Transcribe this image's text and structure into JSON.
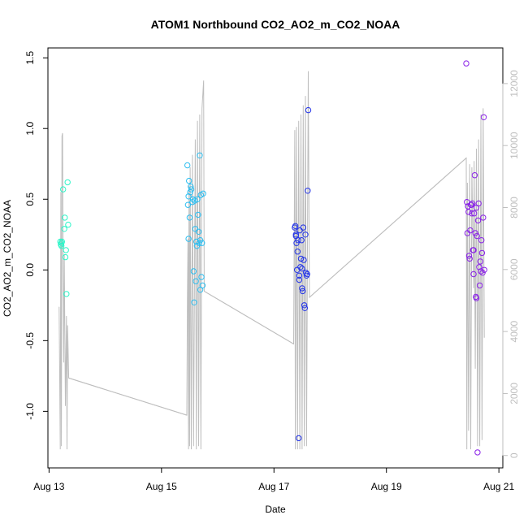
{
  "chart_data": {
    "type": "scatter",
    "title": "ATOM1 Northbound CO2_AO2_m_CO2_NOAA",
    "xlabel": "Date",
    "ylabel": "CO2_AO2_m_CO2_NOAA",
    "x_ticks": [
      {
        "day": 13,
        "label": "Aug 13"
      },
      {
        "day": 15,
        "label": "Aug 15"
      },
      {
        "day": 17,
        "label": "Aug 17"
      },
      {
        "day": 19,
        "label": "Aug 19"
      },
      {
        "day": 21,
        "label": "Aug 21"
      }
    ],
    "y_ticks": [
      "1.5",
      "1.0",
      "0.5",
      "0.0",
      "-0.5",
      "-1.0"
    ],
    "y_tick_values": [
      1.5,
      1.0,
      0.5,
      0.0,
      -0.5,
      -1.0
    ],
    "y2_ticks": [
      "12000",
      "10000",
      "8000",
      "6000",
      "4000",
      "2000",
      "0"
    ],
    "y2_tick_values": [
      12000,
      10000,
      8000,
      6000,
      4000,
      2000,
      0
    ],
    "xlim": [
      12.98,
      21.07
    ],
    "ylim": [
      -1.4,
      1.57
    ],
    "y2lim": [
      -400,
      13150
    ],
    "colors": {
      "frame": "#000000",
      "secondary_axis": "#bebebe",
      "altitude_line": "#bebebe",
      "flight_colors": [
        "#2ef5c8",
        "#2ebef0",
        "#2233e8",
        "#8a22e8"
      ]
    },
    "series": [
      {
        "flight_index": 0,
        "points": [
          [
            13.2,
            0.2
          ],
          [
            13.21,
            0.18
          ],
          [
            13.22,
            0.19
          ],
          [
            13.22,
            0.17
          ],
          [
            13.23,
            0.2
          ],
          [
            13.25,
            0.57
          ],
          [
            13.27,
            0.29
          ],
          [
            13.28,
            0.37
          ],
          [
            13.29,
            0.09
          ],
          [
            13.3,
            0.14
          ],
          [
            13.31,
            -0.17
          ],
          [
            13.33,
            0.62
          ],
          [
            13.34,
            0.32
          ]
        ]
      },
      {
        "flight_index": 1,
        "points": [
          [
            15.46,
            0.74
          ],
          [
            15.47,
            0.46
          ],
          [
            15.48,
            0.52
          ],
          [
            15.48,
            0.22
          ],
          [
            15.49,
            0.63
          ],
          [
            15.5,
            0.37
          ],
          [
            15.51,
            0.55
          ],
          [
            15.52,
            0.59
          ],
          [
            15.53,
            0.57
          ],
          [
            15.55,
            0.48
          ],
          [
            15.56,
            0.5
          ],
          [
            15.57,
            -0.01
          ],
          [
            15.58,
            -0.23
          ],
          [
            15.59,
            0.49
          ],
          [
            15.6,
            0.29
          ],
          [
            15.61,
            -0.08
          ],
          [
            15.62,
            0.2
          ],
          [
            15.63,
            0.17
          ],
          [
            15.64,
            0.5
          ],
          [
            15.65,
            0.39
          ],
          [
            15.66,
            0.27
          ],
          [
            15.67,
            0.19
          ],
          [
            15.68,
            0.81
          ],
          [
            15.69,
            0.21
          ],
          [
            15.69,
            -0.14
          ],
          [
            15.7,
            0.53
          ],
          [
            15.71,
            -0.05
          ],
          [
            15.72,
            0.19
          ],
          [
            15.73,
            -0.11
          ],
          [
            15.74,
            0.54
          ]
        ]
      },
      {
        "flight_index": 2,
        "points": [
          [
            17.37,
            0.3
          ],
          [
            17.38,
            0.31
          ],
          [
            17.39,
            0.25
          ],
          [
            17.39,
            0.24
          ],
          [
            17.4,
            0.19
          ],
          [
            17.41,
            0.0
          ],
          [
            17.42,
            0.13
          ],
          [
            17.43,
            0.21
          ],
          [
            17.44,
            -1.19
          ],
          [
            17.45,
            -0.04
          ],
          [
            17.46,
            0.28
          ],
          [
            17.47,
            0.02
          ],
          [
            17.48,
            0.08
          ],
          [
            17.49,
            0.21
          ],
          [
            17.5,
            -0.13
          ],
          [
            17.51,
            -0.15
          ],
          [
            17.52,
            0.3
          ],
          [
            17.53,
            0.07
          ],
          [
            17.54,
            -0.25
          ],
          [
            17.55,
            -0.27
          ],
          [
            17.56,
            0.25
          ],
          [
            17.57,
            -0.02
          ],
          [
            17.58,
            -0.04
          ],
          [
            17.59,
            -0.03
          ],
          [
            17.6,
            0.56
          ],
          [
            17.61,
            1.13
          ],
          [
            17.45,
            -0.07
          ],
          [
            17.5,
            0.01
          ]
        ]
      },
      {
        "flight_index": 3,
        "points": [
          [
            20.42,
            1.46
          ],
          [
            20.43,
            0.48
          ],
          [
            20.44,
            0.26
          ],
          [
            20.45,
            0.45
          ],
          [
            20.46,
            0.41
          ],
          [
            20.47,
            0.1
          ],
          [
            20.48,
            0.08
          ],
          [
            20.49,
            0.28
          ],
          [
            20.5,
            0.46
          ],
          [
            20.51,
            0.46
          ],
          [
            20.52,
            0.4
          ],
          [
            20.53,
            0.47
          ],
          [
            20.54,
            0.14
          ],
          [
            20.55,
            -0.03
          ],
          [
            20.56,
            0.4
          ],
          [
            20.57,
            0.67
          ],
          [
            20.58,
            0.26
          ],
          [
            20.59,
            -0.19
          ],
          [
            20.6,
            -0.2
          ],
          [
            20.61,
            0.24
          ],
          [
            20.62,
            -1.29
          ],
          [
            20.63,
            0.35
          ],
          [
            20.64,
            0.47
          ],
          [
            20.65,
            0.02
          ],
          [
            20.66,
            -0.11
          ],
          [
            20.67,
            0.06
          ],
          [
            20.68,
            -0.01
          ],
          [
            20.69,
            0.21
          ],
          [
            20.7,
            0.12
          ],
          [
            20.71,
            -0.02
          ],
          [
            20.72,
            0.37
          ],
          [
            20.73,
            1.08
          ],
          [
            20.74,
            0.0
          ],
          [
            20.55,
            0.14
          ],
          [
            20.6,
            0.44
          ]
        ]
      }
    ],
    "altitude_profile": [
      [
        13.18,
        4800
      ],
      [
        13.2,
        200
      ],
      [
        13.21,
        8500
      ],
      [
        13.22,
        300
      ],
      [
        13.23,
        10300
      ],
      [
        13.24,
        10400
      ],
      [
        13.25,
        6000
      ],
      [
        13.26,
        3000
      ],
      [
        13.27,
        6500
      ],
      [
        13.29,
        1600
      ],
      [
        13.31,
        4500
      ],
      [
        13.32,
        200
      ],
      [
        13.33,
        4200
      ],
      [
        13.35,
        2500
      ],
      [
        15.45,
        1300
      ],
      [
        15.46,
        5000
      ],
      [
        15.47,
        7000
      ],
      [
        15.48,
        200
      ],
      [
        15.49,
        8700
      ],
      [
        15.5,
        300
      ],
      [
        15.51,
        9300
      ],
      [
        15.53,
        200
      ],
      [
        15.55,
        9700
      ],
      [
        15.57,
        300
      ],
      [
        15.6,
        10200
      ],
      [
        15.62,
        200
      ],
      [
        15.64,
        10800
      ],
      [
        15.66,
        300
      ],
      [
        15.68,
        11000
      ],
      [
        15.7,
        200
      ],
      [
        15.72,
        11200
      ],
      [
        15.75,
        12100
      ],
      [
        15.76,
        5300
      ],
      [
        17.35,
        3600
      ],
      [
        17.37,
        10500
      ],
      [
        17.38,
        200
      ],
      [
        17.4,
        10600
      ],
      [
        17.42,
        200
      ],
      [
        17.44,
        10800
      ],
      [
        17.46,
        200
      ],
      [
        17.48,
        11000
      ],
      [
        17.5,
        200
      ],
      [
        17.52,
        11300
      ],
      [
        17.54,
        300
      ],
      [
        17.56,
        11600
      ],
      [
        17.58,
        300
      ],
      [
        17.61,
        12400
      ],
      [
        17.63,
        5100
      ],
      [
        20.42,
        9600
      ],
      [
        20.43,
        200
      ],
      [
        20.44,
        8800
      ],
      [
        20.46,
        800
      ],
      [
        20.48,
        9400
      ],
      [
        20.5,
        200
      ],
      [
        20.52,
        9300
      ],
      [
        20.55,
        5400
      ],
      [
        20.56,
        9500
      ],
      [
        20.58,
        2800
      ],
      [
        20.6,
        9900
      ],
      [
        20.62,
        300
      ],
      [
        20.64,
        10200
      ],
      [
        20.66,
        300
      ],
      [
        20.68,
        11000
      ],
      [
        20.7,
        500
      ],
      [
        20.72,
        11200
      ],
      [
        20.74,
        3800
      ]
    ],
    "altitude_transits": [
      [
        [
          13.35,
          2500
        ],
        [
          15.45,
          1300
        ]
      ],
      [
        [
          15.76,
          5300
        ],
        [
          17.35,
          3600
        ]
      ],
      [
        [
          17.63,
          5100
        ],
        [
          20.42,
          9600
        ]
      ]
    ]
  }
}
